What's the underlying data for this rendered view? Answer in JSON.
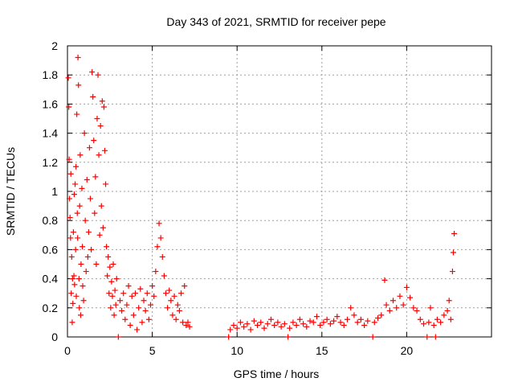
{
  "chart_data": {
    "type": "scatter",
    "title": "Day 343 of 2021, SRMTID for receiver pepe",
    "xlabel": "GPS time / hours",
    "ylabel": "SRMTID / TECUs",
    "xlim": [
      0,
      25
    ],
    "ylim": [
      0,
      2
    ],
    "x_ticks": [
      0,
      5,
      10,
      15,
      20
    ],
    "x_tick_labels": [
      "0",
      "5",
      "10",
      "15",
      "20"
    ],
    "y_ticks": [
      0,
      0.2,
      0.4,
      0.6,
      0.8,
      1,
      1.2,
      1.4,
      1.6,
      1.8,
      2
    ],
    "y_tick_labels": [
      "0",
      "0.2",
      "0.4",
      "0.6",
      "0.8",
      "1",
      "1.2",
      "1.4",
      "1.6",
      "1.8",
      "2"
    ],
    "grid": true,
    "marker": "+",
    "series": [
      {
        "name": "SRMTID",
        "color": "#ff0000",
        "points": [
          [
            0.05,
            1.78
          ],
          [
            0.08,
            1.58
          ],
          [
            0.1,
            1.22
          ],
          [
            0.12,
            0.95
          ],
          [
            0.15,
            0.82
          ],
          [
            0.18,
            0.68
          ],
          [
            0.2,
            1.12
          ],
          [
            0.22,
            0.3
          ],
          [
            0.25,
            0.55
          ],
          [
            0.28,
            0.1
          ],
          [
            0.3,
            0.4
          ],
          [
            0.32,
            0.23
          ],
          [
            0.35,
            0.72
          ],
          [
            0.38,
            0.42
          ],
          [
            0.4,
            0.98
          ],
          [
            0.42,
            0.36
          ],
          [
            0.45,
            1.05
          ],
          [
            0.48,
            0.6
          ],
          [
            0.5,
            1.17
          ],
          [
            0.52,
            0.28
          ],
          [
            0.55,
            1.53
          ],
          [
            0.58,
            0.85
          ],
          [
            0.6,
            0.68
          ],
          [
            0.62,
            1.92
          ],
          [
            0.65,
            1.73
          ],
          [
            0.68,
            0.4
          ],
          [
            0.7,
            0.2
          ],
          [
            0.72,
            0.9
          ],
          [
            0.75,
            1.25
          ],
          [
            0.78,
            0.15
          ],
          [
            0.8,
            0.5
          ],
          [
            0.85,
            1.02
          ],
          [
            0.88,
            0.62
          ],
          [
            0.9,
            0.35
          ],
          [
            0.95,
            0.25
          ],
          [
            1.0,
            1.4
          ],
          [
            1.05,
            0.8
          ],
          [
            1.1,
            0.45
          ],
          [
            1.15,
            1.08
          ],
          [
            1.2,
            0.55
          ],
          [
            1.25,
            0.72
          ],
          [
            1.3,
            1.3
          ],
          [
            1.35,
            0.95
          ],
          [
            1.4,
            0.6
          ],
          [
            1.45,
            1.82
          ],
          [
            1.5,
            1.65
          ],
          [
            1.55,
            1.35
          ],
          [
            1.6,
            0.85
          ],
          [
            1.65,
            1.1
          ],
          [
            1.7,
            0.5
          ],
          [
            1.75,
            1.5
          ],
          [
            1.8,
            1.8
          ],
          [
            1.85,
            1.25
          ],
          [
            1.9,
            0.7
          ],
          [
            1.95,
            1.45
          ],
          [
            2.0,
            0.9
          ],
          [
            2.05,
            1.62
          ],
          [
            2.1,
            0.75
          ],
          [
            2.15,
            1.58
          ],
          [
            2.2,
            1.28
          ],
          [
            2.25,
            1.05
          ],
          [
            2.3,
            0.62
          ],
          [
            2.35,
            0.42
          ],
          [
            2.4,
            0.55
          ],
          [
            2.45,
            0.3
          ],
          [
            2.5,
            0.48
          ],
          [
            2.55,
            0.2
          ],
          [
            2.6,
            0.38
          ],
          [
            2.65,
            0.28
          ],
          [
            2.7,
            0.5
          ],
          [
            2.75,
            0.15
          ],
          [
            2.8,
            0.32
          ],
          [
            2.85,
            0.22
          ],
          [
            2.9,
            0.4
          ],
          [
            3.0,
            0.0
          ],
          [
            3.1,
            0.25
          ],
          [
            3.2,
            0.18
          ],
          [
            3.3,
            0.3
          ],
          [
            3.4,
            0.12
          ],
          [
            3.5,
            0.22
          ],
          [
            3.6,
            0.35
          ],
          [
            3.7,
            0.08
          ],
          [
            3.8,
            0.28
          ],
          [
            3.9,
            0.15
          ],
          [
            4.0,
            0.3
          ],
          [
            4.1,
            0.05
          ],
          [
            4.2,
            0.2
          ],
          [
            4.3,
            0.33
          ],
          [
            4.4,
            0.1
          ],
          [
            4.5,
            0.25
          ],
          [
            4.6,
            0.18
          ],
          [
            4.7,
            0.3
          ],
          [
            4.8,
            0.12
          ],
          [
            4.9,
            0.22
          ],
          [
            5.0,
            0.35
          ],
          [
            5.1,
            0.28
          ],
          [
            5.2,
            0.45
          ],
          [
            5.3,
            0.62
          ],
          [
            5.4,
            0.78
          ],
          [
            5.5,
            0.68
          ],
          [
            5.6,
            0.55
          ],
          [
            5.7,
            0.42
          ],
          [
            5.8,
            0.3
          ],
          [
            5.9,
            0.2
          ],
          [
            6.0,
            0.32
          ],
          [
            6.1,
            0.25
          ],
          [
            6.2,
            0.15
          ],
          [
            6.3,
            0.28
          ],
          [
            6.4,
            0.12
          ],
          [
            6.5,
            0.22
          ],
          [
            6.6,
            0.18
          ],
          [
            6.7,
            0.3
          ],
          [
            6.8,
            0.1
          ],
          [
            6.9,
            0.35
          ],
          [
            7.0,
            0.08
          ],
          [
            7.1,
            0.1
          ],
          [
            7.2,
            0.07
          ],
          [
            9.5,
            0.0
          ],
          [
            9.6,
            0.05
          ],
          [
            9.8,
            0.08
          ],
          [
            10.0,
            0.06
          ],
          [
            10.2,
            0.1
          ],
          [
            10.4,
            0.07
          ],
          [
            10.6,
            0.09
          ],
          [
            10.8,
            0.05
          ],
          [
            11.0,
            0.11
          ],
          [
            11.2,
            0.08
          ],
          [
            11.4,
            0.1
          ],
          [
            11.6,
            0.06
          ],
          [
            11.8,
            0.09
          ],
          [
            12.0,
            0.12
          ],
          [
            12.2,
            0.08
          ],
          [
            12.4,
            0.1
          ],
          [
            12.6,
            0.07
          ],
          [
            12.8,
            0.09
          ],
          [
            13.0,
            0.0
          ],
          [
            13.1,
            0.06
          ],
          [
            13.3,
            0.1
          ],
          [
            13.5,
            0.08
          ],
          [
            13.7,
            0.12
          ],
          [
            13.9,
            0.09
          ],
          [
            14.1,
            0.07
          ],
          [
            14.3,
            0.11
          ],
          [
            14.5,
            0.1
          ],
          [
            14.7,
            0.14
          ],
          [
            14.9,
            0.08
          ],
          [
            15.1,
            0.1
          ],
          [
            15.3,
            0.12
          ],
          [
            15.5,
            0.09
          ],
          [
            15.7,
            0.11
          ],
          [
            15.9,
            0.14
          ],
          [
            16.1,
            0.1
          ],
          [
            16.3,
            0.08
          ],
          [
            16.5,
            0.12
          ],
          [
            16.7,
            0.2
          ],
          [
            16.9,
            0.15
          ],
          [
            17.1,
            0.1
          ],
          [
            17.3,
            0.12
          ],
          [
            17.5,
            0.08
          ],
          [
            17.7,
            0.11
          ],
          [
            18.0,
            0.0
          ],
          [
            18.1,
            0.1
          ],
          [
            18.3,
            0.13
          ],
          [
            18.5,
            0.15
          ],
          [
            18.7,
            0.39
          ],
          [
            18.8,
            0.22
          ],
          [
            19.0,
            0.18
          ],
          [
            19.2,
            0.25
          ],
          [
            19.4,
            0.2
          ],
          [
            19.6,
            0.28
          ],
          [
            19.8,
            0.22
          ],
          [
            20.0,
            0.34
          ],
          [
            20.2,
            0.27
          ],
          [
            20.4,
            0.2
          ],
          [
            20.6,
            0.18
          ],
          [
            20.8,
            0.12
          ],
          [
            21.0,
            0.09
          ],
          [
            21.2,
            0.0
          ],
          [
            21.3,
            0.1
          ],
          [
            21.4,
            0.2
          ],
          [
            21.6,
            0.08
          ],
          [
            21.7,
            0.0
          ],
          [
            21.8,
            0.12
          ],
          [
            22.0,
            0.1
          ],
          [
            22.2,
            0.15
          ],
          [
            22.4,
            0.18
          ],
          [
            22.5,
            0.25
          ],
          [
            22.6,
            0.12
          ],
          [
            22.7,
            0.45
          ],
          [
            22.75,
            0.58
          ],
          [
            22.8,
            0.71
          ]
        ]
      }
    ]
  }
}
